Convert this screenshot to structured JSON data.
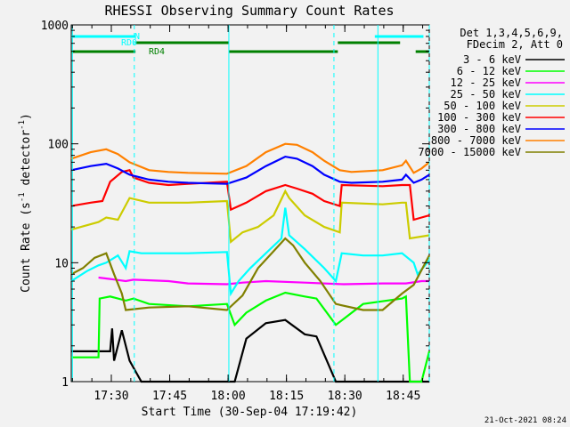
{
  "chart_data": {
    "type": "line",
    "title": "RHESSI Observing Summary Count Rates",
    "xlabel": "Start Time (30-Sep-04 17:19:42)",
    "ylabel": "Count Rate (s",
    "ylabel_sup": "-1",
    "ylabel_mid": " detector",
    "ylabel_end": ")",
    "yscale": "log",
    "ylim": [
      1,
      1000
    ],
    "xlim_minutes": [
      0,
      57
    ],
    "xticks": [
      {
        "min": 10.3,
        "label": "17:30"
      },
      {
        "min": 25.3,
        "label": "17:45"
      },
      {
        "min": 40.3,
        "label": "18:00"
      },
      {
        "min": 55.3,
        "label": "18:15"
      },
      {
        "min": 70.3,
        "label": "18:30"
      },
      {
        "min": 85.3,
        "label": "18:45"
      }
    ],
    "yticks": [
      {
        "v": 1,
        "label": "1"
      },
      {
        "v": 10,
        "label": "10"
      },
      {
        "v": 100,
        "label": "100"
      },
      {
        "v": 1000,
        "label": "1000"
      }
    ],
    "legend_header": [
      "Det 1,3,4,5,6,9,",
      "FDecim 2, Att 0"
    ],
    "series": [
      {
        "name": "3 - 6 keV",
        "color": "#000000",
        "points": [
          [
            0,
            1.8
          ],
          [
            10,
            1.8
          ],
          [
            10.5,
            2.8
          ],
          [
            11,
            1.5
          ],
          [
            13,
            2.7
          ],
          [
            15,
            1.5
          ],
          [
            18,
            1
          ],
          [
            40,
            1
          ],
          [
            42,
            1
          ],
          [
            45,
            2.3
          ],
          [
            50,
            3.1
          ],
          [
            55,
            3.3
          ],
          [
            60,
            2.5
          ],
          [
            63,
            2.4
          ],
          [
            68,
            1
          ],
          [
            92,
            1
          ]
        ]
      },
      {
        "name": "6 - 12 keV",
        "color": "#00ff00",
        "points": [
          [
            0,
            1.6
          ],
          [
            7,
            1.6
          ],
          [
            7.3,
            5
          ],
          [
            10,
            5.2
          ],
          [
            14,
            4.8
          ],
          [
            16,
            5
          ],
          [
            20,
            4.5
          ],
          [
            30,
            4.3
          ],
          [
            40,
            4.5
          ],
          [
            42,
            3
          ],
          [
            45,
            3.8
          ],
          [
            50,
            4.8
          ],
          [
            55,
            5.6
          ],
          [
            60,
            5.2
          ],
          [
            63,
            5
          ],
          [
            68,
            3
          ],
          [
            75,
            4.5
          ],
          [
            85,
            5
          ],
          [
            86,
            5.2
          ],
          [
            87,
            1
          ],
          [
            90,
            1
          ],
          [
            92,
            1.8
          ]
        ]
      },
      {
        "name": "12 - 25 keV",
        "color": "#ff00ff",
        "points": [
          [
            7,
            7.5
          ],
          [
            10,
            7.3
          ],
          [
            14,
            7
          ],
          [
            16,
            7.2
          ],
          [
            25,
            7
          ],
          [
            30,
            6.7
          ],
          [
            40,
            6.6
          ],
          [
            44,
            6.8
          ],
          [
            50,
            7
          ],
          [
            60,
            6.8
          ],
          [
            70,
            6.6
          ],
          [
            80,
            6.7
          ],
          [
            86,
            6.7
          ],
          [
            90,
            7
          ],
          [
            92,
            7
          ]
        ]
      },
      {
        "name": "25 - 50 keV",
        "color": "#00ffff",
        "points": [
          [
            0,
            7
          ],
          [
            4,
            8.5
          ],
          [
            7,
            9.5
          ],
          [
            9,
            10
          ],
          [
            12,
            11.5
          ],
          [
            14,
            9
          ],
          [
            15,
            12.5
          ],
          [
            18,
            12
          ],
          [
            25,
            12
          ],
          [
            30,
            12
          ],
          [
            40,
            12.3
          ],
          [
            41,
            5.5
          ],
          [
            43,
            7
          ],
          [
            46,
            9
          ],
          [
            50,
            12
          ],
          [
            54,
            16
          ],
          [
            55,
            29
          ],
          [
            56,
            17
          ],
          [
            60,
            13
          ],
          [
            65,
            9
          ],
          [
            68,
            7
          ],
          [
            69.5,
            12
          ],
          [
            75,
            11.5
          ],
          [
            80,
            11.5
          ],
          [
            85,
            12
          ],
          [
            88,
            10
          ],
          [
            89,
            8
          ],
          [
            92,
            10.5
          ]
        ]
      },
      {
        "name": "50 - 100 keV",
        "color": "#cccc00",
        "points": [
          [
            0,
            19
          ],
          [
            7,
            22
          ],
          [
            9,
            24
          ],
          [
            12,
            23
          ],
          [
            15,
            35
          ],
          [
            20,
            32
          ],
          [
            25,
            32
          ],
          [
            30,
            32
          ],
          [
            40,
            33
          ],
          [
            41,
            15
          ],
          [
            44,
            18
          ],
          [
            48,
            20
          ],
          [
            52,
            25
          ],
          [
            55,
            40
          ],
          [
            56,
            35
          ],
          [
            60,
            25
          ],
          [
            65,
            20
          ],
          [
            69,
            18
          ],
          [
            69.5,
            32
          ],
          [
            80,
            31
          ],
          [
            85,
            32
          ],
          [
            86,
            32
          ],
          [
            87,
            16
          ],
          [
            92,
            17
          ]
        ]
      },
      {
        "name": "100 - 300 keV",
        "color": "#ff0000",
        "points": [
          [
            0,
            30
          ],
          [
            5,
            32
          ],
          [
            8,
            33
          ],
          [
            10,
            48
          ],
          [
            13,
            58
          ],
          [
            15,
            60
          ],
          [
            16,
            52
          ],
          [
            20,
            47
          ],
          [
            25,
            45
          ],
          [
            30,
            46
          ],
          [
            40,
            48
          ],
          [
            41,
            28
          ],
          [
            45,
            32
          ],
          [
            50,
            40
          ],
          [
            55,
            45
          ],
          [
            58,
            42
          ],
          [
            62,
            38
          ],
          [
            65,
            33
          ],
          [
            69,
            30
          ],
          [
            69.5,
            45
          ],
          [
            80,
            44
          ],
          [
            85,
            45
          ],
          [
            87,
            45
          ],
          [
            88,
            23
          ],
          [
            90,
            24
          ],
          [
            92,
            25
          ]
        ]
      },
      {
        "name": "300 - 800 keV",
        "color": "#0000ff",
        "points": [
          [
            0,
            60
          ],
          [
            5,
            65
          ],
          [
            9,
            68
          ],
          [
            12,
            62
          ],
          [
            15,
            55
          ],
          [
            20,
            50
          ],
          [
            25,
            48
          ],
          [
            30,
            47
          ],
          [
            40,
            46
          ],
          [
            45,
            52
          ],
          [
            50,
            65
          ],
          [
            55,
            78
          ],
          [
            58,
            75
          ],
          [
            62,
            65
          ],
          [
            65,
            55
          ],
          [
            69,
            48
          ],
          [
            72,
            47
          ],
          [
            80,
            48
          ],
          [
            85,
            50
          ],
          [
            86,
            55
          ],
          [
            88,
            47
          ],
          [
            90,
            50
          ],
          [
            92,
            55
          ]
        ]
      },
      {
        "name": "800 - 7000 keV",
        "color": "#ff8000",
        "points": [
          [
            0,
            75
          ],
          [
            5,
            85
          ],
          [
            9,
            90
          ],
          [
            12,
            82
          ],
          [
            15,
            70
          ],
          [
            20,
            60
          ],
          [
            25,
            58
          ],
          [
            30,
            57
          ],
          [
            40,
            56
          ],
          [
            45,
            65
          ],
          [
            50,
            85
          ],
          [
            55,
            100
          ],
          [
            58,
            98
          ],
          [
            62,
            85
          ],
          [
            65,
            72
          ],
          [
            69,
            60
          ],
          [
            72,
            58
          ],
          [
            80,
            60
          ],
          [
            85,
            66
          ],
          [
            86,
            72
          ],
          [
            88,
            57
          ],
          [
            90,
            62
          ],
          [
            92,
            70
          ]
        ]
      },
      {
        "name": "7000 - 15000 keV",
        "color": "#808000",
        "points": [
          [
            0,
            8
          ],
          [
            3,
            9
          ],
          [
            6,
            11
          ],
          [
            9,
            12
          ],
          [
            11,
            8
          ],
          [
            13,
            5.5
          ],
          [
            14,
            4
          ],
          [
            20,
            4.2
          ],
          [
            30,
            4.3
          ],
          [
            40,
            4
          ],
          [
            44,
            5.3
          ],
          [
            48,
            9
          ],
          [
            52,
            12.5
          ],
          [
            55,
            16
          ],
          [
            57,
            14
          ],
          [
            60,
            10
          ],
          [
            64,
            7
          ],
          [
            68,
            4.5
          ],
          [
            75,
            4
          ],
          [
            80,
            4
          ],
          [
            85,
            5.5
          ],
          [
            88,
            6.5
          ],
          [
            92,
            11.5
          ]
        ]
      }
    ],
    "annotations": [
      {
        "label": "RD0",
        "color": "#00ffff"
      },
      {
        "label": "N",
        "color": "#00ffff"
      },
      {
        "label": "RD4",
        "color": "#008000"
      }
    ],
    "footer_date": "21-Oct-2021 08:24"
  }
}
